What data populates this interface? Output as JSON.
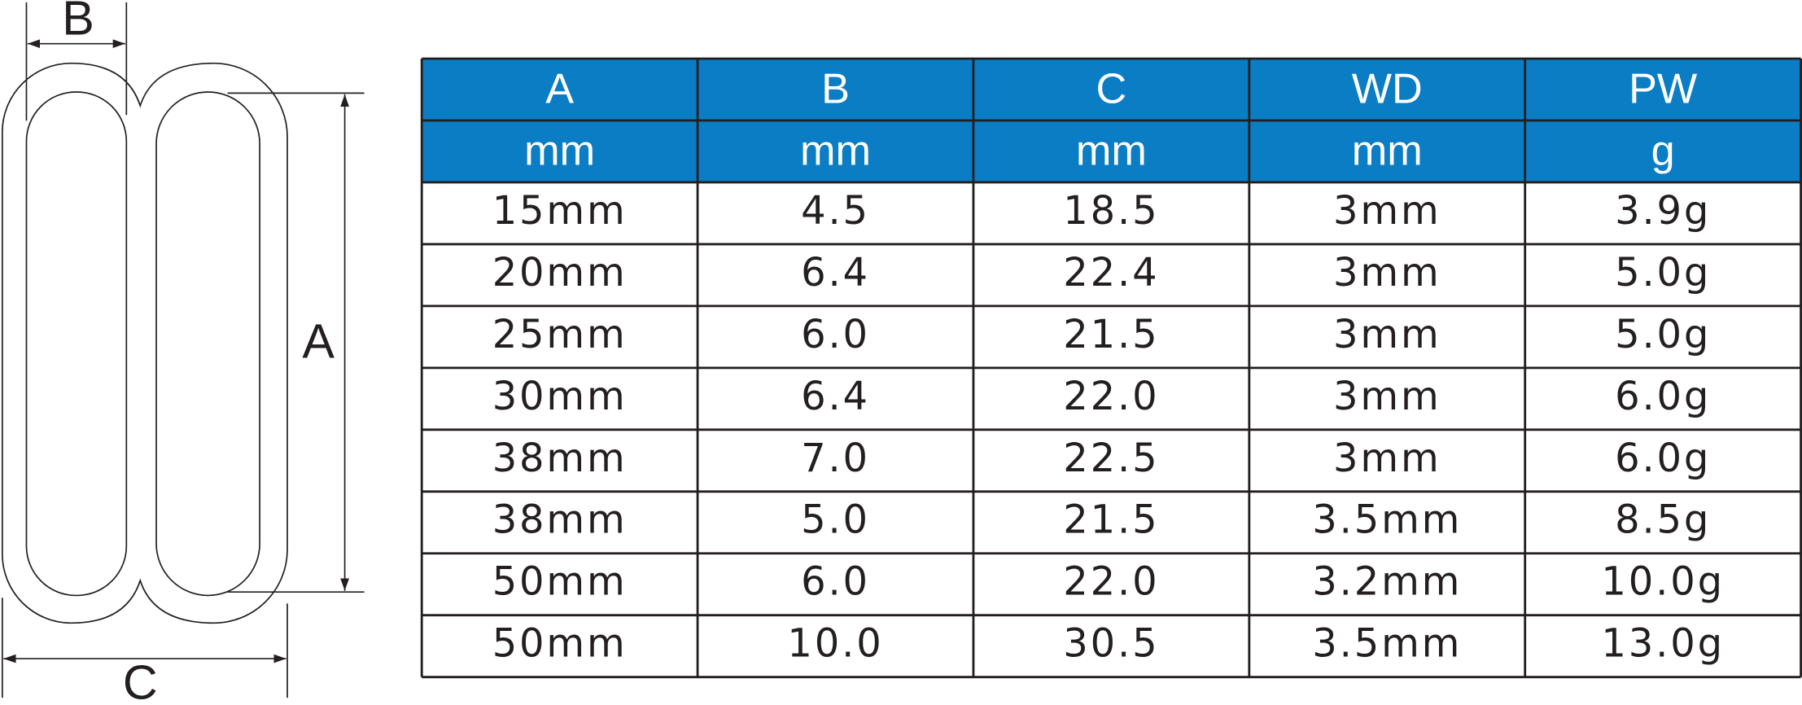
{
  "diagram": {
    "labels": {
      "a": "A",
      "b": "B",
      "c": "C"
    }
  },
  "table": {
    "header": [
      [
        "A",
        "B",
        "C",
        "WD",
        "PW"
      ],
      [
        "mm",
        "mm",
        "mm",
        "mm",
        "g"
      ]
    ],
    "rows": [
      [
        "15mm",
        "4.5",
        "18.5",
        "3mm",
        "3.9g"
      ],
      [
        "20mm",
        "6.4",
        "22.4",
        "3mm",
        "5.0g"
      ],
      [
        "25mm",
        "6.0",
        "21.5",
        "3mm",
        "5.0g"
      ],
      [
        "30mm",
        "6.4",
        "22.0",
        "3mm",
        "6.0g"
      ],
      [
        "38mm",
        "7.0",
        "22.5",
        "3mm",
        "6.0g"
      ],
      [
        "38mm",
        "5.0",
        "21.5",
        "3.5mm",
        "8.5g"
      ],
      [
        "50mm",
        "6.0",
        "22.0",
        "3.2mm",
        "10.0g"
      ],
      [
        "50mm",
        "10.0",
        "30.5",
        "3.5mm",
        "13.0g"
      ]
    ]
  }
}
